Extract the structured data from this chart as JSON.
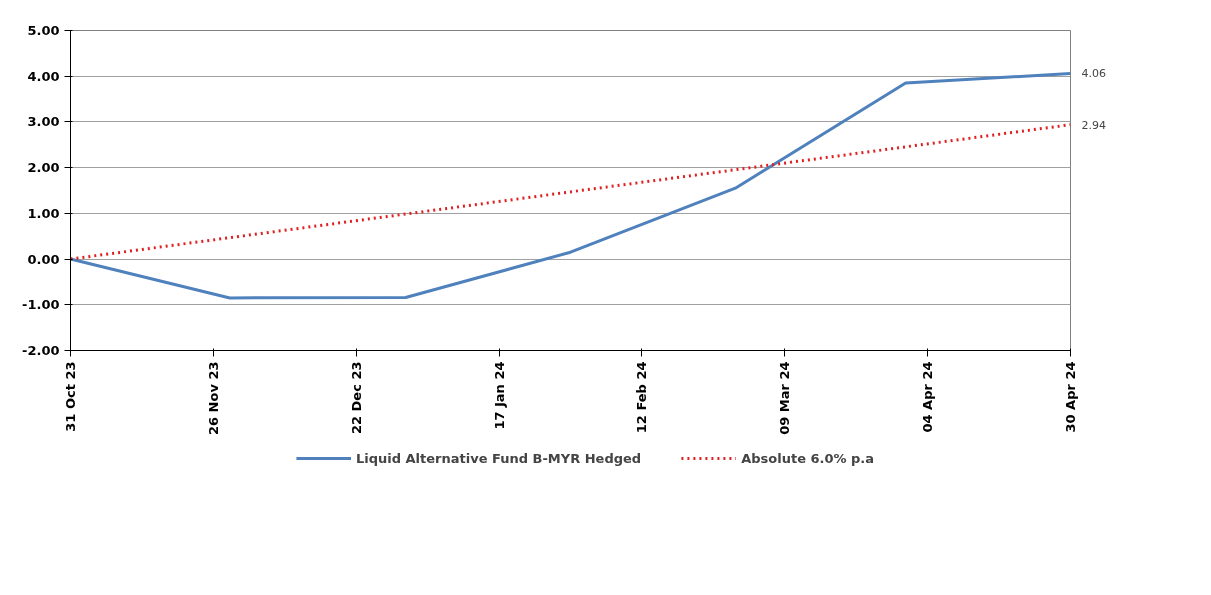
{
  "chart_data": {
    "type": "line",
    "xlim": [
      "2023-10-31",
      "2024-04-30"
    ],
    "ylim": [
      -2,
      5
    ],
    "xticks": [
      {
        "value": "2023-10-31",
        "label": "31 Oct 23"
      },
      {
        "value": "2023-11-26",
        "label": "26 Nov 23"
      },
      {
        "value": "2023-12-22",
        "label": "22 Dec 23"
      },
      {
        "value": "2024-01-17",
        "label": "17 Jan 24"
      },
      {
        "value": "2024-02-12",
        "label": "12 Feb 24"
      },
      {
        "value": "2024-03-09",
        "label": "09 Mar 24"
      },
      {
        "value": "2024-04-04",
        "label": "04 Apr 24"
      },
      {
        "value": "2024-04-30",
        "label": "30 Apr 24"
      }
    ],
    "yticks": [
      {
        "value": -2,
        "label": "-2.00"
      },
      {
        "value": -1,
        "label": "-1.00"
      },
      {
        "value": 0,
        "label": "0.00"
      },
      {
        "value": 1,
        "label": "1.00"
      },
      {
        "value": 2,
        "label": "2.00"
      },
      {
        "value": 3,
        "label": "3.00"
      },
      {
        "value": 4,
        "label": "4.00"
      },
      {
        "value": 5,
        "label": "5.00"
      }
    ],
    "grid": "y",
    "legend": "bottom",
    "marker": "none",
    "series": [
      {
        "name": "Liquid Alternative Fund B-MYR Hedged",
        "color": "#4f81bd",
        "line_style": "solid",
        "x": [
          "2023-10-31",
          "2023-11-29",
          "2023-12-31",
          "2024-01-30",
          "2024-02-29",
          "2024-03-31",
          "2024-04-30"
        ],
        "values": [
          0,
          -0.85,
          -0.84,
          0.15,
          1.55,
          3.85,
          4.06
        ],
        "value_labels": [
          null,
          null,
          null,
          null,
          null,
          null,
          "4.06"
        ]
      },
      {
        "name": "Absolute 6.0% p.a",
        "color": "#e02020",
        "line_style": "dotted",
        "x": [
          "2023-10-31",
          "2024-04-30"
        ],
        "values": [
          0,
          2.94
        ],
        "value_labels": [
          null,
          "2.94"
        ]
      }
    ]
  }
}
